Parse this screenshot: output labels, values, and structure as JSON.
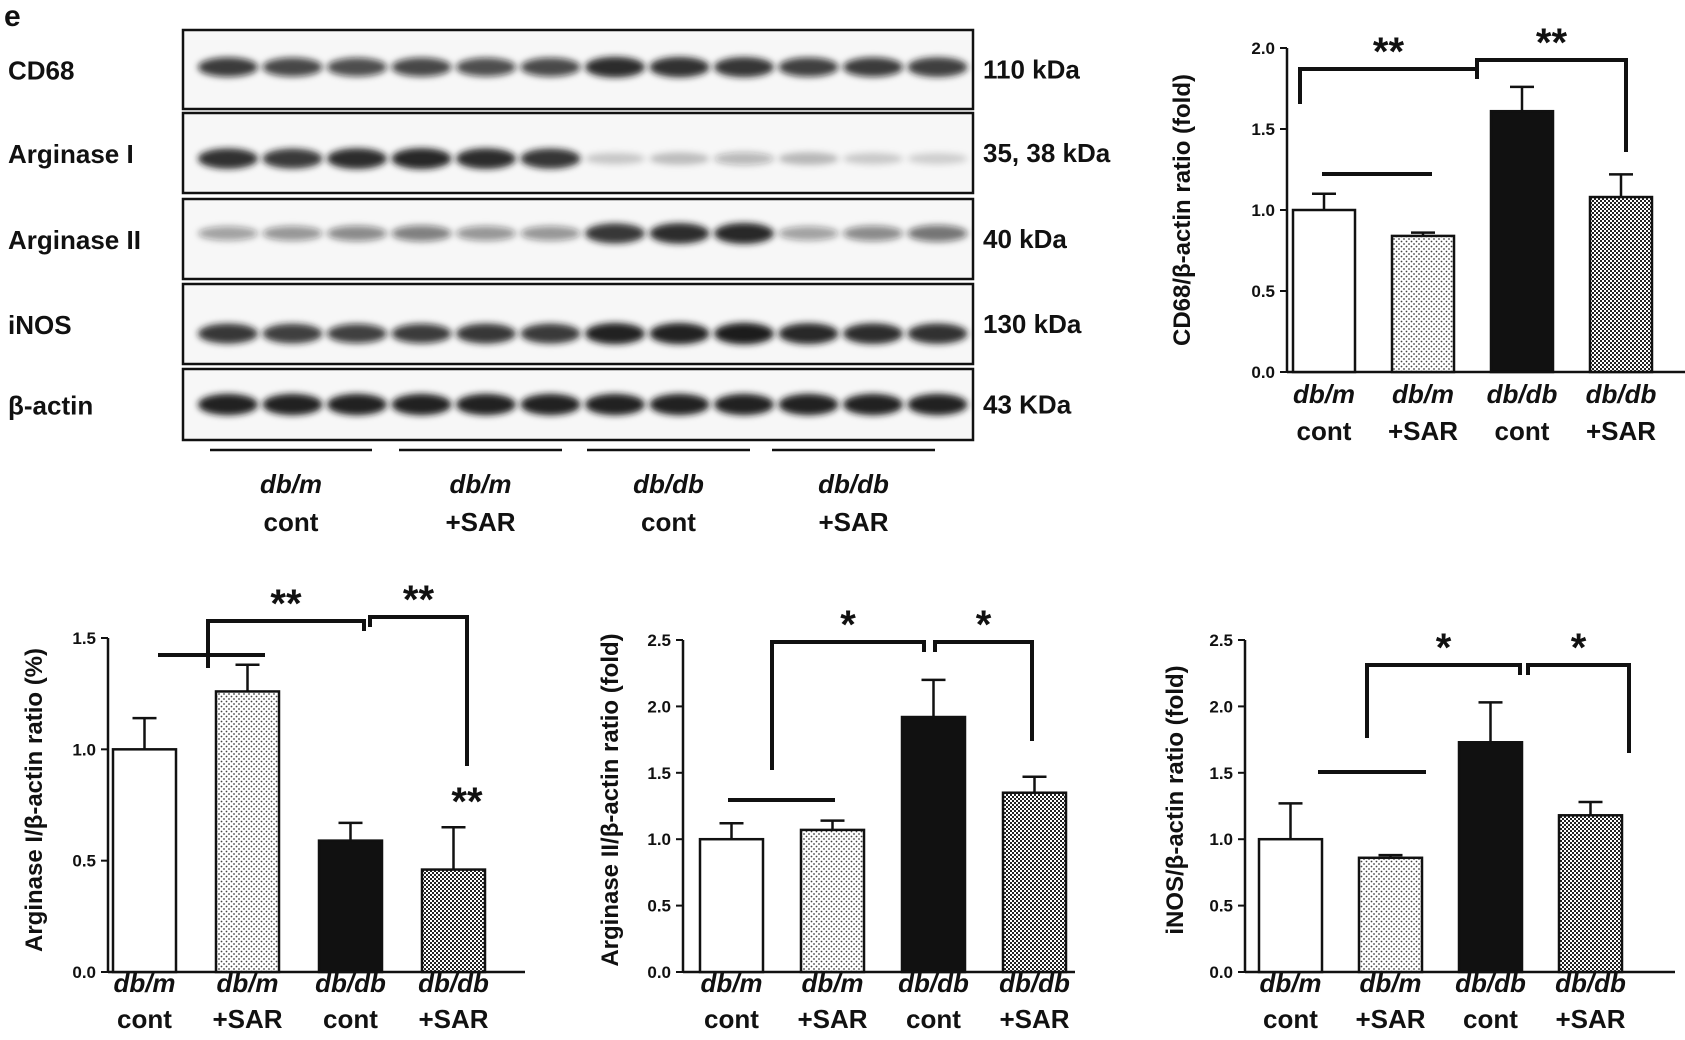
{
  "panel_letter": "e",
  "colors": {
    "ink": "#111111",
    "band": "#141414",
    "background": "#ffffff"
  },
  "western_blot": {
    "rows": [
      {
        "protein": "CD68",
        "size": "110 kDa"
      },
      {
        "protein": "Arginase I",
        "size": "35, 38 kDa"
      },
      {
        "protein": "Arginase II",
        "size": "40 kDa"
      },
      {
        "protein": "iNOS",
        "size": "130 kDa"
      },
      {
        "protein": "β-actin",
        "size": "43 KDa"
      }
    ],
    "lane_groups": [
      {
        "line1": "db/m",
        "line2": "cont"
      },
      {
        "line1": "db/m",
        "line2": "+SAR"
      },
      {
        "line1": "db/db",
        "line2": "cont"
      },
      {
        "line1": "db/db",
        "line2": "+SAR"
      }
    ],
    "band_intensity": [
      [
        0.8,
        0.75,
        0.72,
        0.75,
        0.72,
        0.74,
        0.9,
        0.88,
        0.86,
        0.78,
        0.8,
        0.82
      ],
      [
        0.88,
        0.84,
        0.9,
        0.92,
        0.9,
        0.86,
        0.15,
        0.2,
        0.25,
        0.22,
        0.14,
        0.12
      ],
      [
        0.35,
        0.4,
        0.45,
        0.5,
        0.4,
        0.4,
        0.85,
        0.9,
        0.92,
        0.35,
        0.45,
        0.55
      ],
      [
        0.85,
        0.82,
        0.78,
        0.8,
        0.85,
        0.84,
        0.95,
        0.95,
        0.97,
        0.92,
        0.9,
        0.88
      ],
      [
        0.95,
        0.95,
        0.95,
        0.95,
        0.95,
        0.95,
        0.95,
        0.95,
        0.95,
        0.95,
        0.95,
        0.95
      ]
    ]
  },
  "chart_data": [
    {
      "type": "bar",
      "ylabel": "CD68/β-actin ratio (fold)",
      "ylim": [
        0,
        2.0
      ],
      "yticks": [
        "0.0",
        "0.5",
        "1.0",
        "1.5",
        "2.0"
      ],
      "categories": [
        {
          "line1": "db/m",
          "line2": "cont"
        },
        {
          "line1": "db/m",
          "line2": "+SAR"
        },
        {
          "line1": "db/db",
          "line2": "cont"
        },
        {
          "line1": "db/db",
          "line2": "+SAR"
        }
      ],
      "values": [
        1.0,
        0.84,
        1.61,
        1.08
      ],
      "errors": [
        0.1,
        0.02,
        0.15,
        0.14
      ],
      "patterns": [
        "white",
        "dots",
        "black",
        "checker"
      ],
      "significance": [
        {
          "from": 0,
          "to": 2,
          "label": "**"
        },
        {
          "from": 2,
          "to": 3,
          "label": "**"
        }
      ]
    },
    {
      "type": "bar",
      "ylabel": "Arginase I/β-actin  ratio (%)",
      "ylim": [
        0,
        1.5
      ],
      "yticks": [
        "0.0",
        "0.5",
        "1.0",
        "1.5"
      ],
      "categories": [
        {
          "line1": "db/m",
          "line2": "cont"
        },
        {
          "line1": "db/m",
          "line2": "+SAR"
        },
        {
          "line1": "db/db",
          "line2": "cont"
        },
        {
          "line1": "db/db",
          "line2": "+SAR"
        }
      ],
      "values": [
        1.0,
        1.26,
        0.59,
        0.46
      ],
      "errors": [
        0.14,
        0.12,
        0.08,
        0.19
      ],
      "patterns": [
        "white",
        "dots",
        "black",
        "checker"
      ],
      "significance": [
        {
          "from": 0,
          "to": 2,
          "label": "**"
        },
        {
          "from": 2,
          "to": 3,
          "label": "**"
        }
      ],
      "bar_annotations": [
        {
          "index": 3,
          "label": "**"
        }
      ]
    },
    {
      "type": "bar",
      "ylabel": "Arginase II/β-actin  ratio (fold)",
      "ylim": [
        0,
        2.5
      ],
      "yticks": [
        "0.0",
        "0.5",
        "1.0",
        "1.5",
        "2.0",
        "2.5"
      ],
      "categories": [
        {
          "line1": "db/m",
          "line2": "cont"
        },
        {
          "line1": "db/m",
          "line2": "+SAR"
        },
        {
          "line1": "db/db",
          "line2": "cont"
        },
        {
          "line1": "db/db",
          "line2": "+SAR"
        }
      ],
      "values": [
        1.0,
        1.07,
        1.92,
        1.35
      ],
      "errors": [
        0.12,
        0.07,
        0.28,
        0.12
      ],
      "patterns": [
        "white",
        "dots",
        "black",
        "checker"
      ],
      "significance": [
        {
          "from": 0,
          "to": 2,
          "label": "*"
        },
        {
          "from": 2,
          "to": 3,
          "label": "*"
        }
      ]
    },
    {
      "type": "bar",
      "ylabel": "iNOS/β-actin ratio (fold)",
      "ylim": [
        0,
        2.5
      ],
      "yticks": [
        "0.0",
        "0.5",
        "1.0",
        "1.5",
        "2.0",
        "2.5"
      ],
      "categories": [
        {
          "line1": "db/m",
          "line2": "cont"
        },
        {
          "line1": "db/m",
          "line2": "+SAR"
        },
        {
          "line1": "db/db",
          "line2": "cont"
        },
        {
          "line1": "db/db",
          "line2": "+SAR"
        }
      ],
      "values": [
        1.0,
        0.86,
        1.73,
        1.18
      ],
      "errors": [
        0.27,
        0.02,
        0.3,
        0.1
      ],
      "patterns": [
        "white",
        "dots",
        "black",
        "checker"
      ],
      "significance": [
        {
          "from": 0,
          "to": 2,
          "label": "*"
        },
        {
          "from": 2,
          "to": 3,
          "label": "*"
        }
      ]
    }
  ]
}
